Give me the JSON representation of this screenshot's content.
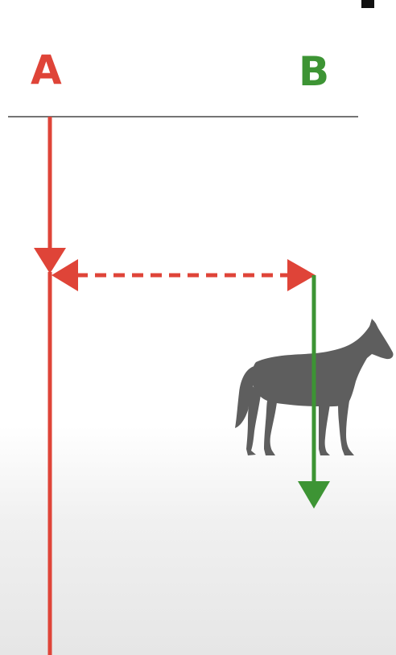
{
  "labels": {
    "a": "A",
    "b": "B"
  },
  "colors": {
    "a": "#df4438",
    "b": "#3d9434",
    "horse": "#5e5e5e",
    "baseline": "#222222"
  },
  "icons": {
    "horse": "horse-icon"
  }
}
